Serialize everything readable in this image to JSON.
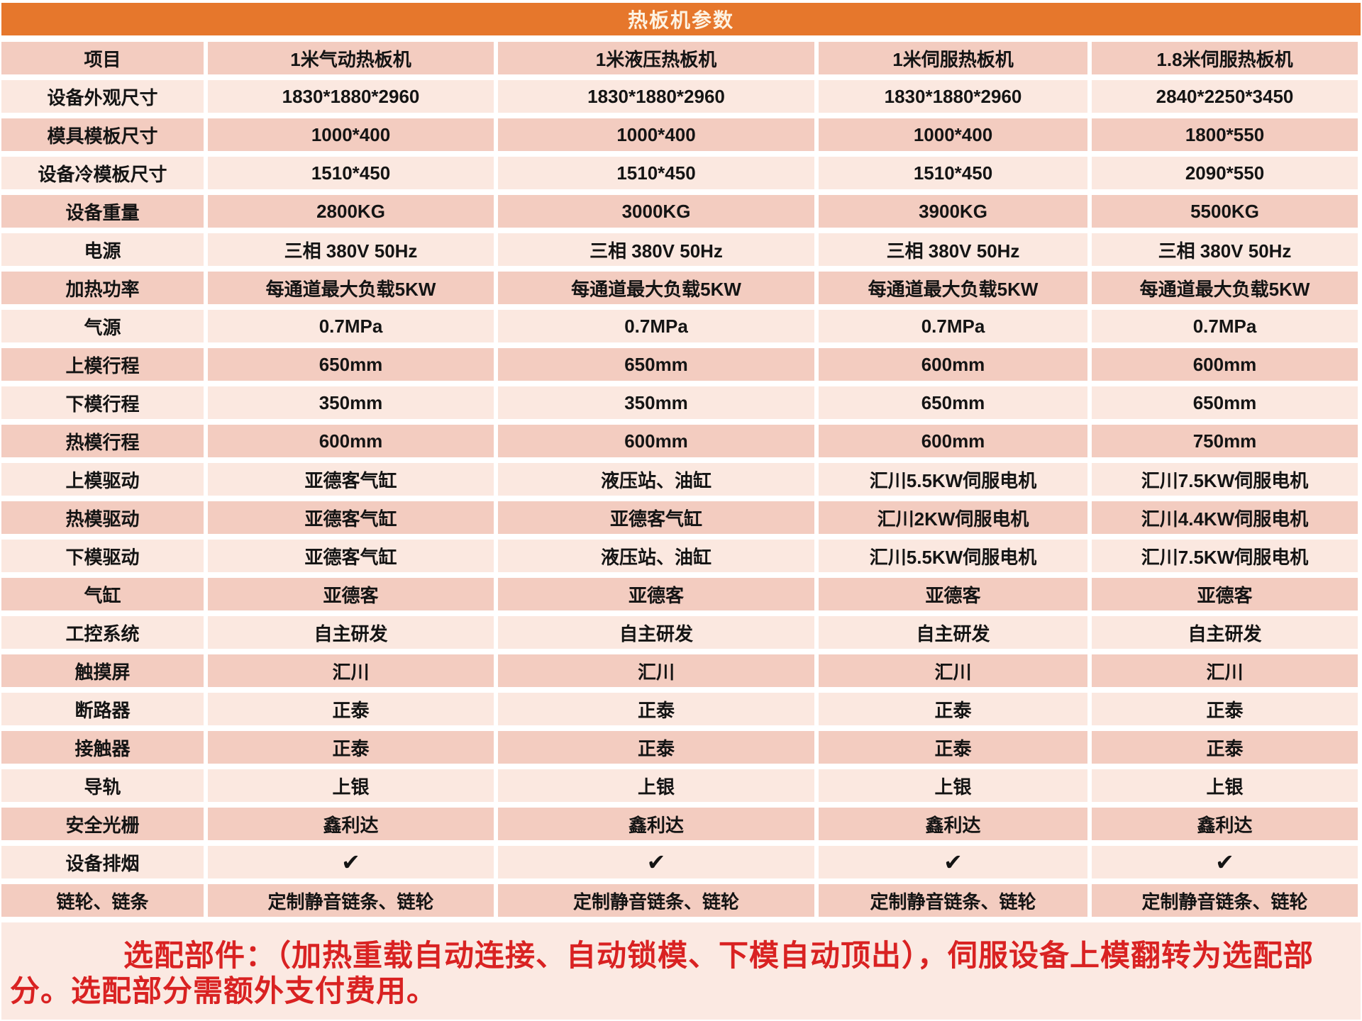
{
  "title": "热板机参数",
  "columns": [
    "项目",
    "1米气动热板机",
    "1米液压热板机",
    "1米伺服热板机",
    "1.8米伺服热板机"
  ],
  "rows": [
    {
      "label": "设备外观尺寸",
      "values": [
        "1830*1880*2960",
        "1830*1880*2960",
        "1830*1880*2960",
        "2840*2250*3450"
      ]
    },
    {
      "label": "模具模板尺寸",
      "values": [
        "1000*400",
        "1000*400",
        "1000*400",
        "1800*550"
      ]
    },
    {
      "label": "设备冷模板尺寸",
      "values": [
        "1510*450",
        "1510*450",
        "1510*450",
        "2090*550"
      ]
    },
    {
      "label": "设备重量",
      "values": [
        "2800KG",
        "3000KG",
        "3900KG",
        "5500KG"
      ]
    },
    {
      "label": "电源",
      "values": [
        "三相 380V 50Hz",
        "三相 380V 50Hz",
        "三相 380V 50Hz",
        "三相 380V 50Hz"
      ]
    },
    {
      "label": "加热功率",
      "values": [
        "每通道最大负载5KW",
        "每通道最大负载5KW",
        "每通道最大负载5KW",
        "每通道最大负载5KW"
      ]
    },
    {
      "label": "气源",
      "values": [
        "0.7MPa",
        "0.7MPa",
        "0.7MPa",
        "0.7MPa"
      ]
    },
    {
      "label": "上模行程",
      "values": [
        "650mm",
        "650mm",
        "600mm",
        "600mm"
      ]
    },
    {
      "label": "下模行程",
      "values": [
        "350mm",
        "350mm",
        "650mm",
        "650mm"
      ]
    },
    {
      "label": "热模行程",
      "values": [
        "600mm",
        "600mm",
        "600mm",
        "750mm"
      ]
    },
    {
      "label": "上模驱动",
      "values": [
        "亚德客气缸",
        "液压站、油缸",
        "汇川5.5KW伺服电机",
        "汇川7.5KW伺服电机"
      ]
    },
    {
      "label": "热模驱动",
      "values": [
        "亚德客气缸",
        "亚德客气缸",
        "汇川2KW伺服电机",
        "汇川4.4KW伺服电机"
      ]
    },
    {
      "label": "下模驱动",
      "values": [
        "亚德客气缸",
        "液压站、油缸",
        "汇川5.5KW伺服电机",
        "汇川7.5KW伺服电机"
      ]
    },
    {
      "label": "气缸",
      "values": [
        "亚德客",
        "亚德客",
        "亚德客",
        "亚德客"
      ]
    },
    {
      "label": "工控系统",
      "values": [
        "自主研发",
        "自主研发",
        "自主研发",
        "自主研发"
      ]
    },
    {
      "label": "触摸屏",
      "values": [
        "汇川",
        "汇川",
        "汇川",
        "汇川"
      ]
    },
    {
      "label": "断路器",
      "values": [
        "正泰",
        "正泰",
        "正泰",
        "正泰"
      ]
    },
    {
      "label": "接触器",
      "values": [
        "正泰",
        "正泰",
        "正泰",
        "正泰"
      ]
    },
    {
      "label": "导轨",
      "values": [
        "上银",
        "上银",
        "上银",
        "上银"
      ]
    },
    {
      "label": "安全光栅",
      "values": [
        "鑫利达",
        "鑫利达",
        "鑫利达",
        "鑫利达"
      ]
    },
    {
      "label": "设备排烟",
      "values": [
        "✔",
        "✔",
        "✔",
        "✔"
      ]
    },
    {
      "label": "链轮、链条",
      "values": [
        "定制静音链条、链轮",
        "定制静音链条、链轮",
        "定制静音链条、链轮",
        "定制静音链条、链轮"
      ]
    }
  ],
  "icons": {
    "checkmark": "✔"
  },
  "footer_note": "选配部件：（加热重载自动连接、自动锁模、下模自动顶出），伺服设备上模翻转为选配部分。选配部分需额外支付费用。",
  "colors": {
    "accent_orange": "#E6772C",
    "title_text": "#FDF3E3",
    "row_dark": "#F3CCC0",
    "row_light": "#FBE8E0",
    "footer_background": "#FBE9E2",
    "note_red": "#D92222",
    "cell_text": "#141414"
  }
}
